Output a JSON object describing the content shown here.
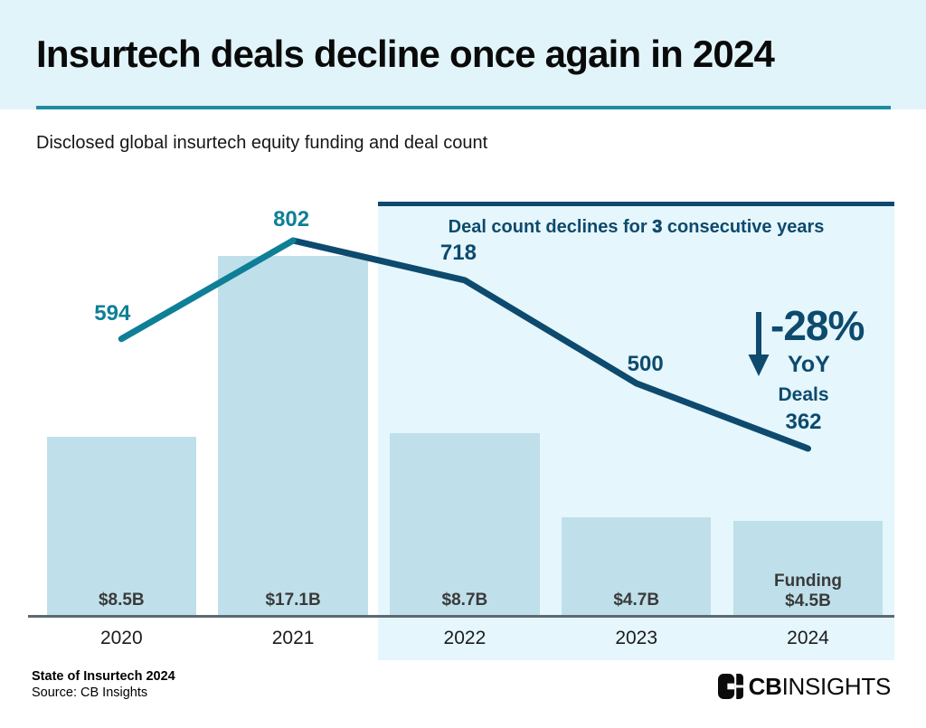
{
  "header": {
    "title": "Insurtech deals decline once again in 2024"
  },
  "subtitle": "Disclosed global insurtech equity funding and deal count",
  "annotation": {
    "prefix": "Deal count declines for ",
    "bold_number": "3",
    "suffix": " consecutive years"
  },
  "stat": {
    "value": "-28%",
    "label": "YoY"
  },
  "footer": {
    "line1": "State of Insurtech 2024",
    "line2": "Source: CB Insights",
    "logo_cb": "CB",
    "logo_insights": "INSIGHTS"
  },
  "colors": {
    "header_band": "#e1f4f9",
    "rule_teal": "#1e8ca1",
    "bar_fill": "#bfe0ea",
    "highlight_fill": "#e5f6fc",
    "navy": "#0d4a6e",
    "teal": "#0e7f96",
    "axis_gray": "#5c6a71",
    "bar_label_gray": "#3a3a3a"
  },
  "chart_data": {
    "type": "combo: bar (funding) + line (deal count)",
    "title": "Insurtech deals decline once again in 2024",
    "subtitle": "Disclosed global insurtech equity funding and deal count",
    "categories": [
      "2020",
      "2021",
      "2022",
      "2023",
      "2024"
    ],
    "series": [
      {
        "name": "Disclosed equity funding",
        "type": "bar",
        "unit": "$B",
        "values": [
          8.5,
          17.1,
          8.7,
          4.7,
          4.5
        ],
        "labels": [
          "$8.5B",
          "$17.1B",
          "$8.7B",
          "$4.7B",
          "$4.5B"
        ],
        "last_point_prefix": "Funding"
      },
      {
        "name": "Deal count",
        "type": "line",
        "values": [
          594,
          802,
          718,
          500,
          362
        ],
        "last_point_prefix": "Deals"
      }
    ],
    "annotations": [
      "Deal count declines for 3 consecutive years",
      "-28% YoY"
    ],
    "highlight_years": [
      "2022",
      "2023",
      "2024"
    ],
    "legend": "none",
    "grid": false
  }
}
